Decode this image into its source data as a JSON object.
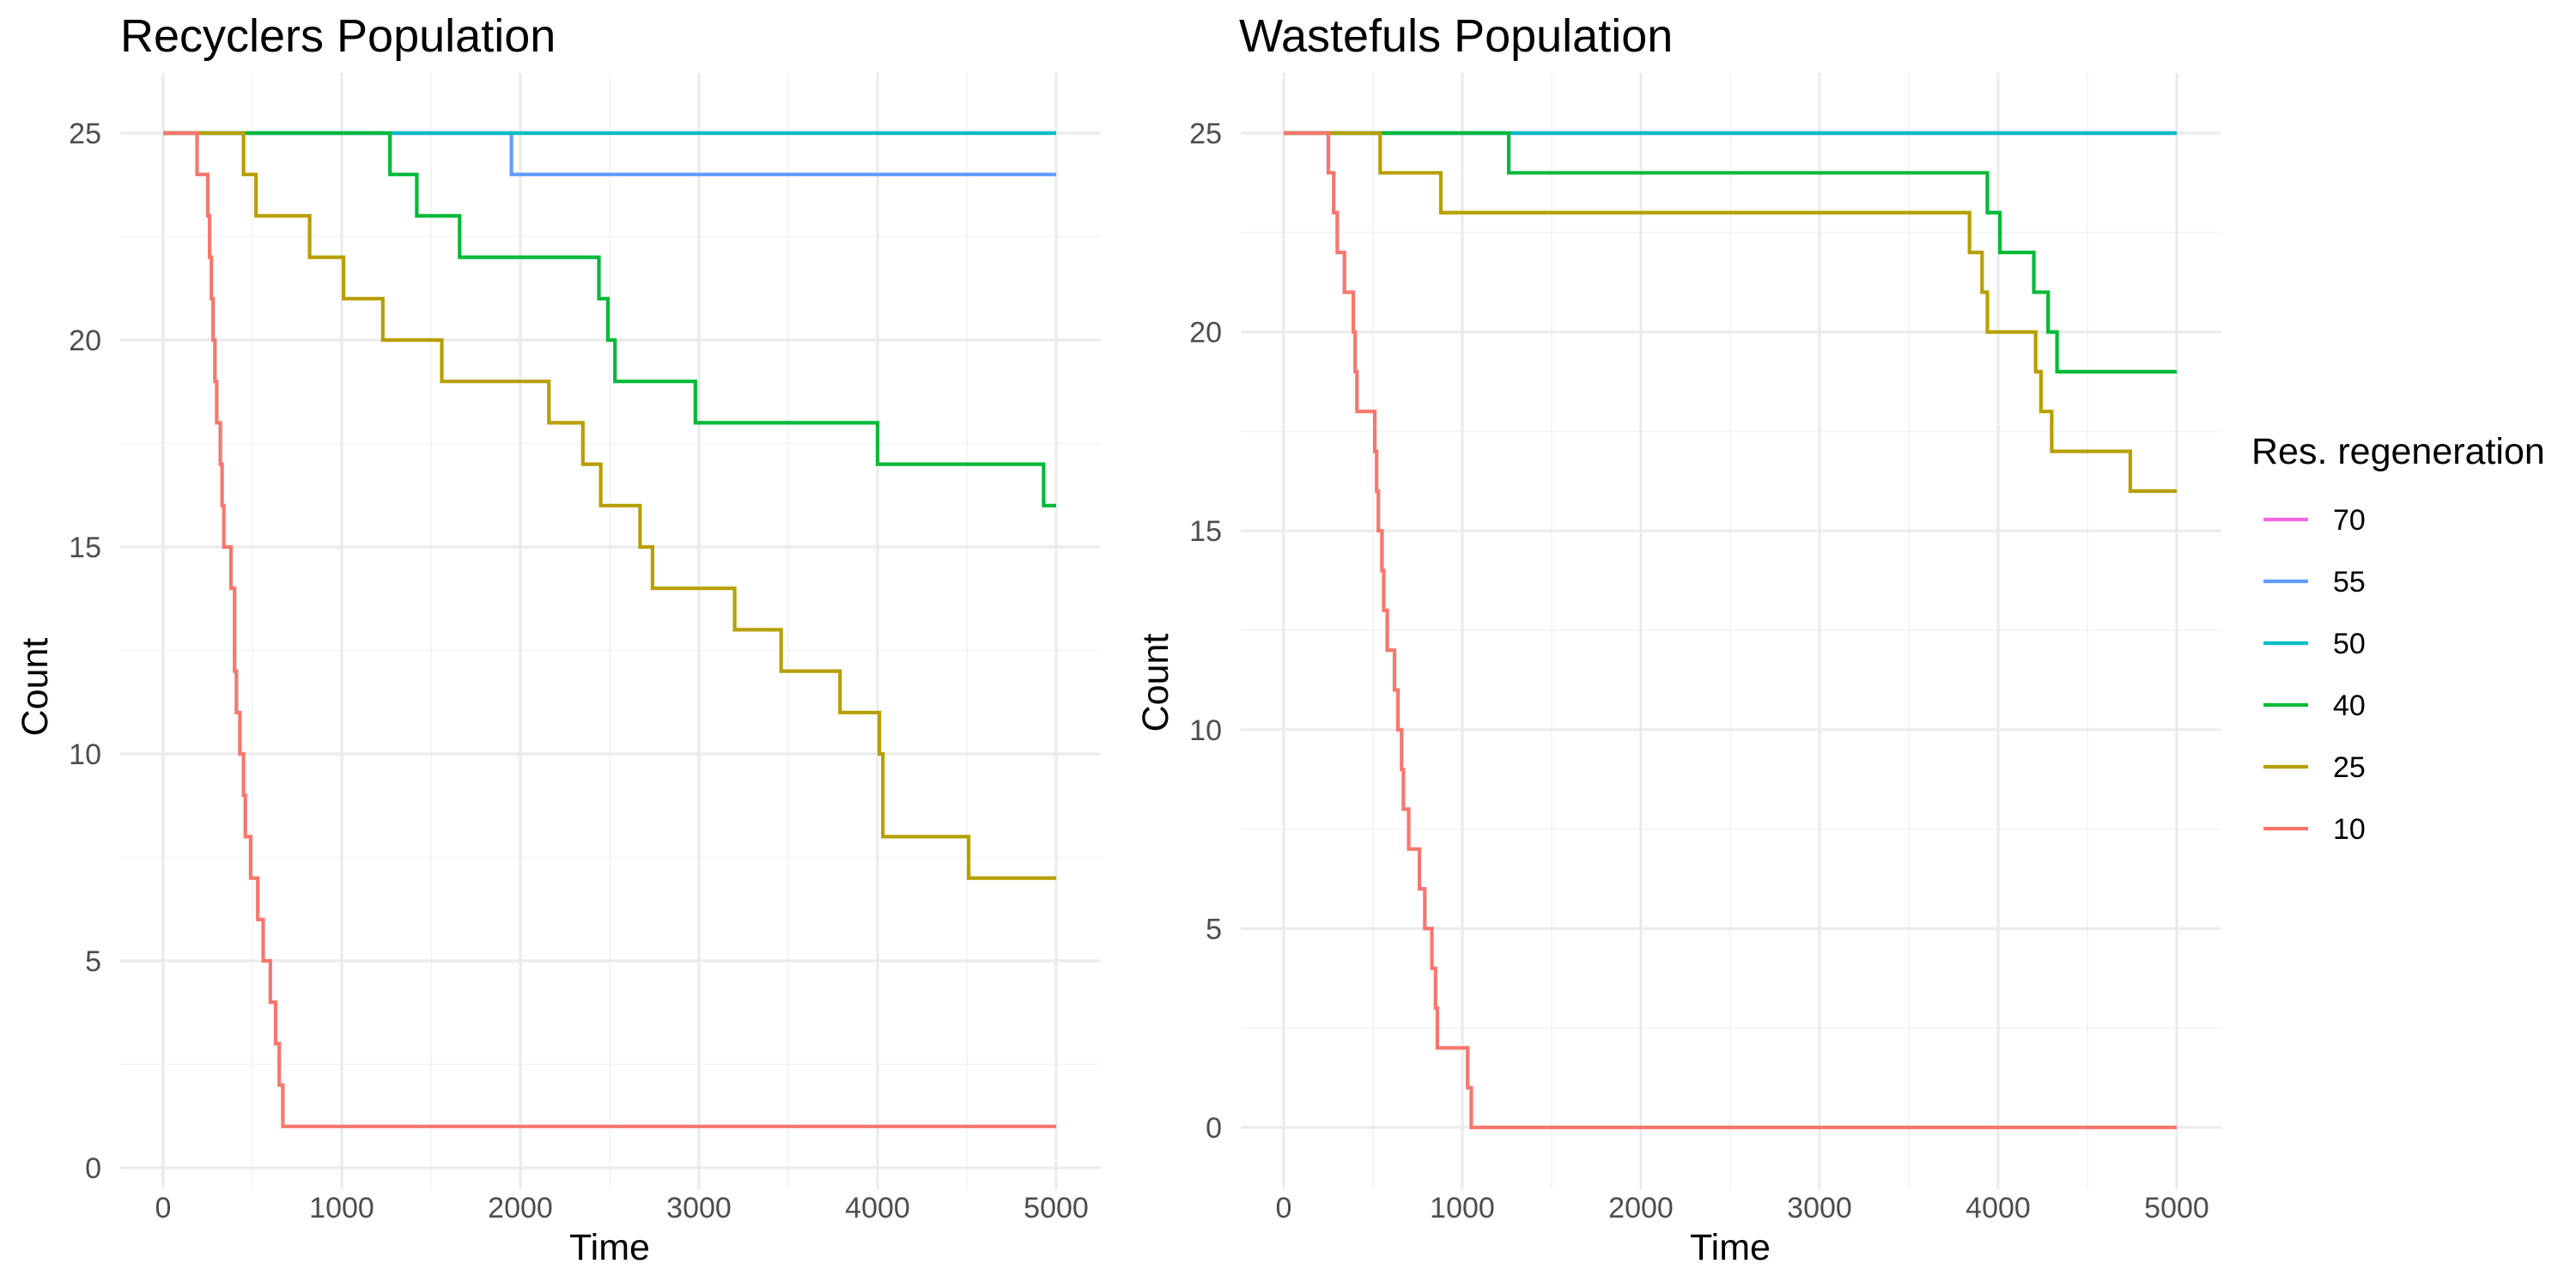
{
  "legend": {
    "title": "Res. regeneration",
    "entries": [
      {
        "label": "70",
        "color": "#f564e3"
      },
      {
        "label": "55",
        "color": "#619cff"
      },
      {
        "label": "50",
        "color": "#00bfc4"
      },
      {
        "label": "40",
        "color": "#00ba38"
      },
      {
        "label": "25",
        "color": "#b79f00"
      },
      {
        "label": "10",
        "color": "#f8766d"
      }
    ]
  },
  "chart_data": [
    {
      "type": "line",
      "title": "Recyclers Population",
      "xlabel": "Time",
      "ylabel": "Count",
      "xlim": [
        0,
        5000
      ],
      "ylim": [
        0,
        25
      ],
      "xticks": [
        0,
        1000,
        2000,
        3000,
        4000,
        5000
      ],
      "yticks": [
        0,
        5,
        10,
        15,
        20,
        25
      ],
      "grid": true,
      "step": true,
      "series": [
        {
          "name": "70",
          "color": "#f564e3",
          "x": [
            0,
            5000
          ],
          "y": [
            25,
            25
          ]
        },
        {
          "name": "55",
          "color": "#619cff",
          "x": [
            0,
            1950,
            5000
          ],
          "y": [
            25,
            24,
            24
          ]
        },
        {
          "name": "50",
          "color": "#00bfc4",
          "x": [
            0,
            5000
          ],
          "y": [
            25,
            25
          ]
        },
        {
          "name": "40",
          "color": "#00ba38",
          "x": [
            0,
            1270,
            1420,
            1660,
            2440,
            2490,
            2530,
            2980,
            4000,
            4930,
            5000
          ],
          "y": [
            25,
            24,
            23,
            22,
            21,
            20,
            19,
            18,
            17,
            16,
            16
          ]
        },
        {
          "name": "25",
          "color": "#b79f00",
          "x": [
            0,
            450,
            520,
            820,
            1010,
            1230,
            1560,
            2160,
            2350,
            2450,
            2670,
            2740,
            3200,
            3460,
            3790,
            4010,
            4030,
            4510,
            5000
          ],
          "y": [
            25,
            24,
            23,
            22,
            21,
            20,
            19,
            18,
            17,
            16,
            15,
            14,
            13,
            12,
            11,
            10,
            8,
            7,
            7
          ]
        },
        {
          "name": "10",
          "color": "#f8766d",
          "x": [
            0,
            190,
            250,
            260,
            270,
            280,
            290,
            300,
            320,
            330,
            340,
            380,
            400,
            410,
            430,
            450,
            460,
            490,
            530,
            560,
            600,
            630,
            650,
            670,
            5000
          ],
          "y": [
            25,
            24,
            23,
            22,
            21,
            20,
            19,
            18,
            17,
            16,
            15,
            14,
            12,
            11,
            10,
            9,
            8,
            7,
            6,
            5,
            4,
            3,
            2,
            1,
            1
          ]
        }
      ]
    },
    {
      "type": "line",
      "title": "Wastefuls Population",
      "xlabel": "Time",
      "ylabel": "Count",
      "xlim": [
        0,
        5000
      ],
      "ylim": [
        0,
        25
      ],
      "xticks": [
        0,
        1000,
        2000,
        3000,
        4000,
        5000
      ],
      "yticks": [
        0,
        5,
        10,
        15,
        20,
        25
      ],
      "grid": true,
      "step": true,
      "series": [
        {
          "name": "70",
          "color": "#f564e3",
          "x": [
            0,
            5000
          ],
          "y": [
            25,
            25
          ]
        },
        {
          "name": "55",
          "color": "#619cff",
          "x": [
            0,
            5000
          ],
          "y": [
            25,
            25
          ]
        },
        {
          "name": "50",
          "color": "#00bfc4",
          "x": [
            0,
            5000
          ],
          "y": [
            25,
            25
          ]
        },
        {
          "name": "40",
          "color": "#00ba38",
          "x": [
            0,
            1260,
            3940,
            4010,
            4200,
            4280,
            4330,
            5000
          ],
          "y": [
            25,
            24,
            23,
            22,
            21,
            20,
            19,
            19
          ]
        },
        {
          "name": "25",
          "color": "#b79f00",
          "x": [
            0,
            540,
            880,
            3840,
            3910,
            3940,
            4210,
            4240,
            4300,
            4740,
            5000
          ],
          "y": [
            25,
            24,
            23,
            22,
            21,
            20,
            19,
            18,
            17,
            16,
            16
          ]
        },
        {
          "name": "10",
          "color": "#f8766d",
          "x": [
            0,
            250,
            280,
            300,
            340,
            390,
            400,
            410,
            420,
            510,
            520,
            530,
            550,
            560,
            580,
            620,
            640,
            660,
            670,
            680,
            700,
            720,
            760,
            790,
            830,
            850,
            860,
            880,
            1030,
            1050,
            1070,
            5000
          ],
          "y": [
            25,
            24,
            23,
            22,
            21,
            20,
            19,
            18,
            18,
            17,
            16,
            15,
            14,
            13,
            12,
            11,
            10,
            9,
            8,
            8,
            7,
            7,
            6,
            5,
            4,
            3,
            2,
            2,
            1,
            0,
            0,
            0
          ]
        }
      ]
    }
  ]
}
